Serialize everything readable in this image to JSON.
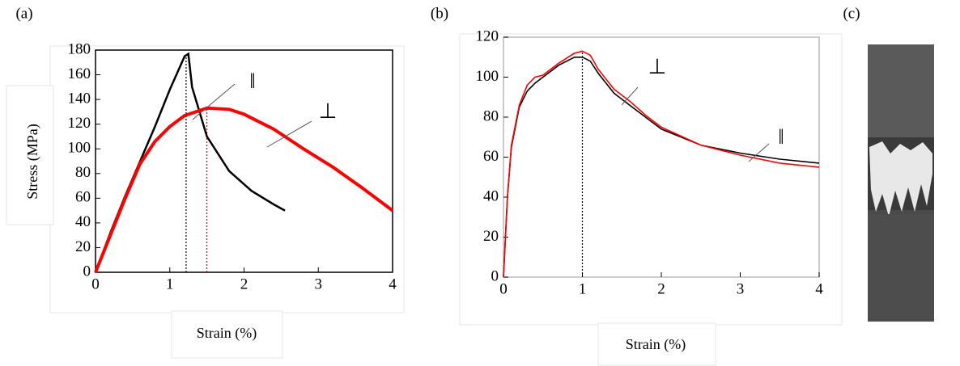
{
  "panels": [
    "(a)",
    "(b)",
    "(c)"
  ],
  "chart_data": [
    {
      "type": "line",
      "xlabel": "Strain (%)",
      "ylabel": "Stress (MPa)",
      "xlim": [
        0,
        4
      ],
      "ylim": [
        0,
        180
      ],
      "xticks": [
        0,
        1,
        2,
        3,
        4
      ],
      "yticks": [
        0,
        20,
        40,
        60,
        80,
        100,
        120,
        140,
        160,
        180
      ],
      "annotations": [
        "‖",
        "⊥"
      ],
      "vlines": [
        {
          "x": 1.22,
          "color": "#000000"
        },
        {
          "x": 1.5,
          "color": "#ff0000"
        }
      ],
      "series": [
        {
          "color": "#000000",
          "x": [
            0,
            0.2,
            0.4,
            0.6,
            0.8,
            1.0,
            1.2,
            1.25,
            1.3,
            1.5,
            1.8,
            2.1,
            2.4,
            2.55
          ],
          "values": [
            0,
            32,
            62,
            90,
            118,
            148,
            175,
            177,
            150,
            110,
            82,
            66,
            55,
            50
          ]
        },
        {
          "color": "#ff0000",
          "x": [
            0,
            0.2,
            0.4,
            0.6,
            0.8,
            1.0,
            1.2,
            1.5,
            1.8,
            2.0,
            2.4,
            2.8,
            3.2,
            3.6,
            4.0
          ],
          "values": [
            0,
            30,
            60,
            88,
            106,
            118,
            127,
            133,
            132,
            128,
            116,
            100,
            85,
            68,
            50
          ]
        }
      ]
    },
    {
      "type": "line",
      "xlabel": "Strain (%)",
      "xlim": [
        0,
        4
      ],
      "ylim": [
        0,
        120
      ],
      "xticks": [
        0,
        1,
        2,
        3,
        4
      ],
      "yticks": [
        0,
        20,
        40,
        60,
        80,
        100,
        120
      ],
      "annotations": [
        "⊥",
        "‖"
      ],
      "vlines": [
        {
          "x": 1.0,
          "color": "#000000"
        }
      ],
      "series": [
        {
          "color": "#000000",
          "x": [
            0,
            0.05,
            0.1,
            0.2,
            0.3,
            0.4,
            0.5,
            0.7,
            0.9,
            1.0,
            1.1,
            1.2,
            1.4,
            1.6,
            1.8,
            2.0,
            2.5,
            3.0,
            3.5,
            4.0
          ],
          "values": [
            0,
            40,
            65,
            85,
            93,
            97,
            100,
            106,
            110,
            110,
            108,
            102,
            92,
            86,
            80,
            74,
            66,
            62,
            59,
            57
          ]
        },
        {
          "color": "#ff0000",
          "x": [
            0,
            0.05,
            0.1,
            0.2,
            0.3,
            0.4,
            0.5,
            0.7,
            0.9,
            1.0,
            1.1,
            1.2,
            1.4,
            1.6,
            1.8,
            2.0,
            2.5,
            3.0,
            3.5,
            4.0
          ],
          "values": [
            0,
            40,
            66,
            86,
            96,
            100,
            101,
            107,
            112,
            113,
            111,
            104,
            94,
            88,
            81,
            75,
            66,
            61,
            57,
            55
          ]
        }
      ]
    }
  ]
}
